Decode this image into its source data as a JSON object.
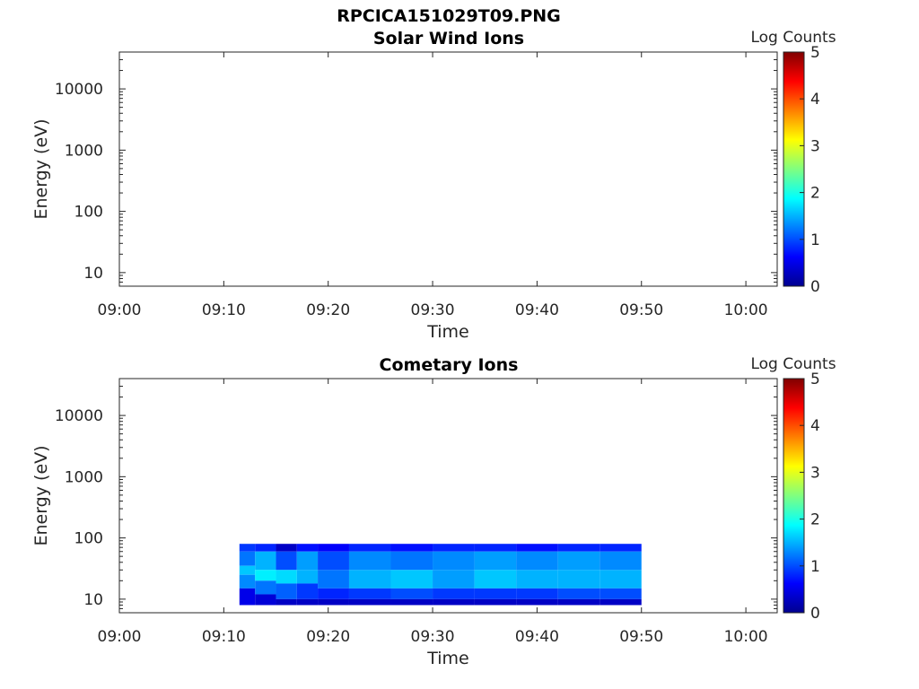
{
  "figure": {
    "title": "RPCICA151029T09.PNG"
  },
  "chart_data": [
    {
      "type": "heatmap",
      "title": "Solar Wind Ions",
      "xlabel": "Time",
      "ylabel": "Energy (eV)",
      "x_tick_labels": [
        "09:00",
        "09:10",
        "09:20",
        "09:30",
        "09:40",
        "09:50",
        "10:00"
      ],
      "y_tick_labels": [
        "10",
        "100",
        "1000",
        "10000"
      ],
      "y_scale": "log",
      "ylim": [
        6,
        40000
      ],
      "xlim": [
        "09:00",
        "10:03"
      ],
      "colorbar": {
        "label": "Log Counts",
        "ticks": [
          "0",
          "1",
          "2",
          "3",
          "4",
          "5"
        ],
        "range": [
          0,
          5
        ],
        "colormap": "jet"
      },
      "data": []
    },
    {
      "type": "heatmap",
      "title": "Cometary Ions",
      "xlabel": "Time",
      "ylabel": "Energy (eV)",
      "x_tick_labels": [
        "09:00",
        "09:10",
        "09:20",
        "09:30",
        "09:40",
        "09:50",
        "10:00"
      ],
      "y_tick_labels": [
        "10",
        "100",
        "1000",
        "10000"
      ],
      "y_scale": "log",
      "ylim": [
        6,
        40000
      ],
      "xlim": [
        "09:00",
        "10:03"
      ],
      "colorbar": {
        "label": "Log Counts",
        "ticks": [
          "0",
          "1",
          "2",
          "3",
          "4",
          "5"
        ],
        "range": [
          0,
          5
        ],
        "colormap": "jet"
      },
      "data_time_range": [
        "09:11:30",
        "09:50:00"
      ],
      "data_energy_range": [
        6,
        80
      ],
      "data": [
        {
          "t": "09:12",
          "bands": [
            [
              60,
              80,
              0.9
            ],
            [
              35,
              60,
              1.2
            ],
            [
              25,
              35,
              1.6
            ],
            [
              15,
              25,
              1.3
            ],
            [
              8,
              15,
              0.5
            ]
          ]
        },
        {
          "t": "09:14",
          "bands": [
            [
              60,
              80,
              0.8
            ],
            [
              30,
              60,
              1.5
            ],
            [
              20,
              30,
              1.8
            ],
            [
              12,
              20,
              1.2
            ],
            [
              8,
              12,
              0.4
            ]
          ]
        },
        {
          "t": "09:16",
          "bands": [
            [
              60,
              80,
              0.3
            ],
            [
              30,
              60,
              1.0
            ],
            [
              18,
              30,
              1.7
            ],
            [
              10,
              18,
              1.1
            ],
            [
              8,
              10,
              0.3
            ]
          ]
        },
        {
          "t": "09:18",
          "bands": [
            [
              60,
              80,
              0.7
            ],
            [
              30,
              60,
              1.4
            ],
            [
              18,
              30,
              1.5
            ],
            [
              10,
              18,
              0.9
            ],
            [
              8,
              10,
              0.3
            ]
          ]
        },
        {
          "t": "09:20",
          "bands": [
            [
              60,
              80,
              0.6
            ],
            [
              30,
              60,
              1.0
            ],
            [
              15,
              30,
              1.2
            ],
            [
              10,
              15,
              0.8
            ],
            [
              8,
              10,
              0.3
            ]
          ]
        },
        {
          "t": "09:24",
          "bands": [
            [
              60,
              80,
              0.8
            ],
            [
              30,
              60,
              1.3
            ],
            [
              15,
              30,
              1.5
            ],
            [
              10,
              15,
              0.9
            ],
            [
              8,
              10,
              0.3
            ]
          ]
        },
        {
          "t": "09:28",
          "bands": [
            [
              60,
              80,
              0.7
            ],
            [
              30,
              60,
              1.2
            ],
            [
              15,
              30,
              1.6
            ],
            [
              10,
              15,
              1.0
            ],
            [
              8,
              10,
              0.3
            ]
          ]
        },
        {
          "t": "09:32",
          "bands": [
            [
              60,
              80,
              0.8
            ],
            [
              30,
              60,
              1.3
            ],
            [
              15,
              30,
              1.4
            ],
            [
              10,
              15,
              0.9
            ],
            [
              8,
              10,
              0.3
            ]
          ]
        },
        {
          "t": "09:36",
          "bands": [
            [
              60,
              80,
              0.8
            ],
            [
              30,
              60,
              1.4
            ],
            [
              15,
              30,
              1.6
            ],
            [
              10,
              15,
              0.9
            ],
            [
              8,
              10,
              0.3
            ]
          ]
        },
        {
          "t": "09:40",
          "bands": [
            [
              60,
              80,
              0.7
            ],
            [
              30,
              60,
              1.3
            ],
            [
              15,
              30,
              1.5
            ],
            [
              10,
              15,
              0.9
            ],
            [
              8,
              10,
              0.3
            ]
          ]
        },
        {
          "t": "09:44",
          "bands": [
            [
              60,
              80,
              0.8
            ],
            [
              30,
              60,
              1.4
            ],
            [
              15,
              30,
              1.5
            ],
            [
              10,
              15,
              1.0
            ],
            [
              8,
              10,
              0.3
            ]
          ]
        },
        {
          "t": "09:48",
          "bands": [
            [
              60,
              80,
              0.8
            ],
            [
              30,
              60,
              1.3
            ],
            [
              15,
              30,
              1.5
            ],
            [
              10,
              15,
              1.0
            ],
            [
              8,
              10,
              0.3
            ]
          ]
        }
      ]
    }
  ]
}
